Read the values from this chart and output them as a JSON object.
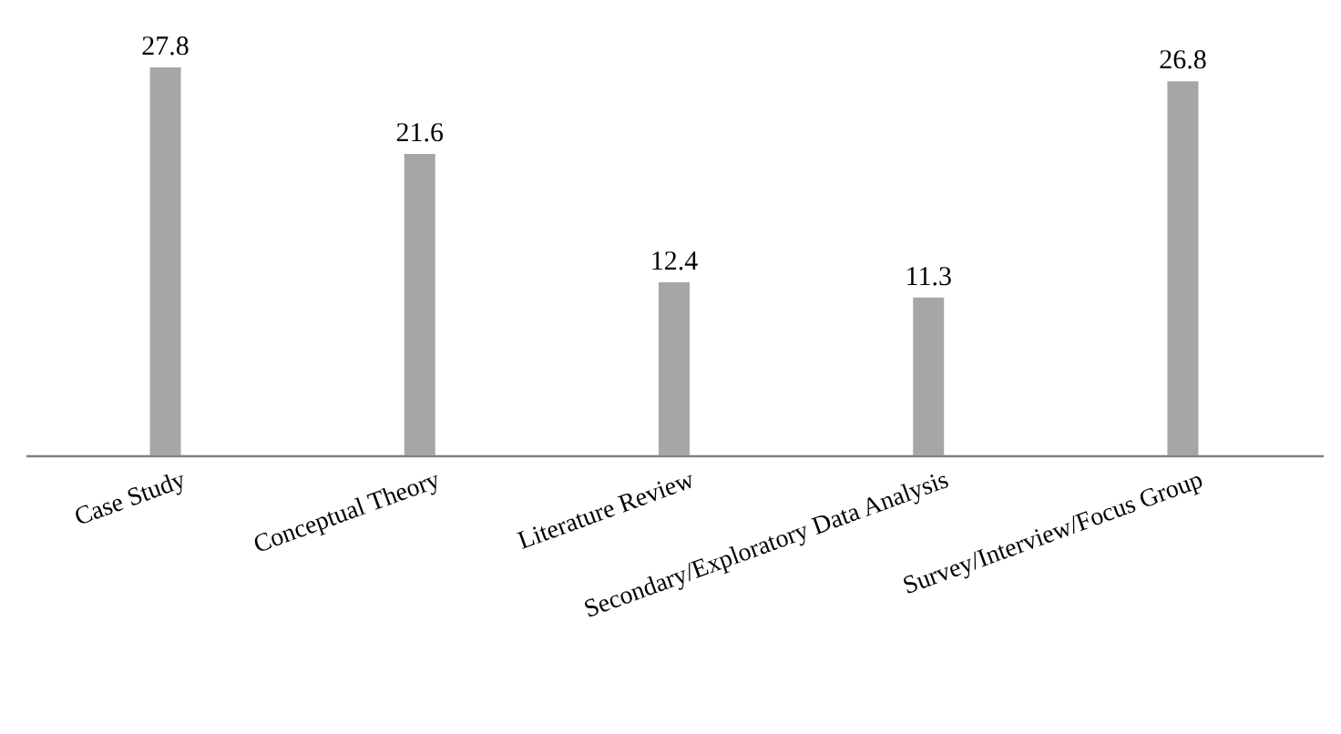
{
  "chart_data": {
    "type": "bar",
    "categories": [
      "Case Study",
      "Conceptual Theory",
      "Literature Review",
      "Secondary/Exploratory Data Analysis",
      "Survey/Interview/Focus Group"
    ],
    "values": [
      27.8,
      21.6,
      12.4,
      11.3,
      26.8
    ],
    "color": "#a6a6a6",
    "data_labels": true,
    "grid": false
  }
}
